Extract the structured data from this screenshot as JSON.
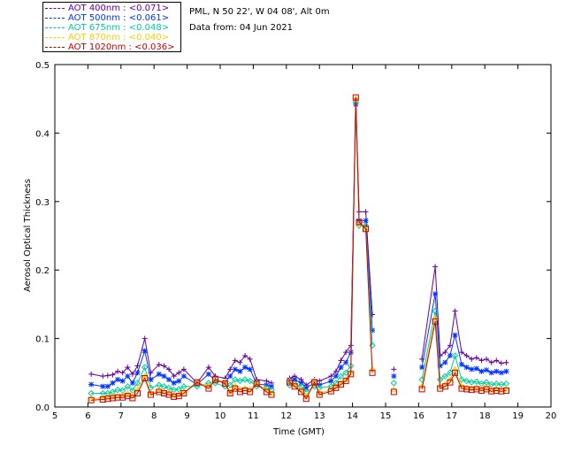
{
  "header": {
    "site": "PML, N 50 22', W 04 08', Alt 0m",
    "date": "Data from: 04 Jun 2021"
  },
  "legend": [
    {
      "text": "AOT  400nm : <0.071>",
      "color": "#660099"
    },
    {
      "text": "AOT  500nm : <0.061>",
      "color": "#0033ff"
    },
    {
      "text": "AOT  675nm : <0.048>",
      "color": "#00cc99"
    },
    {
      "text": "AOT  870nm : <0.040>",
      "color": "#ffcc00"
    },
    {
      "text": "AOT 1020nm : <0.036>",
      "color": "#cc0000"
    }
  ],
  "chart_data": {
    "type": "line",
    "title": "",
    "xlabel": "Time (GMT)",
    "ylabel": "Aerosol Optical Thickness",
    "xlim": [
      5,
      20
    ],
    "ylim": [
      0,
      0.5
    ],
    "xticks": [
      5,
      6,
      7,
      8,
      9,
      10,
      11,
      12,
      13,
      14,
      15,
      16,
      17,
      18,
      19,
      20
    ],
    "yticks": [
      0.0,
      0.1,
      0.2,
      0.3,
      0.4,
      0.5
    ],
    "ytick_labels": [
      "0.0",
      "0.1",
      "0.2",
      "0.3",
      "0.4",
      "0.5"
    ],
    "x": [
      6.1,
      6.45,
      6.6,
      6.75,
      6.9,
      7.05,
      7.2,
      7.35,
      7.5,
      7.72,
      7.9,
      8.15,
      8.3,
      8.45,
      8.6,
      8.75,
      8.9,
      9.3,
      9.65,
      9.85,
      10.15,
      10.3,
      10.45,
      10.6,
      10.75,
      10.9,
      11.1,
      11.4,
      11.55,
      12.1,
      12.25,
      12.45,
      12.6,
      12.85,
      13.0,
      13.35,
      13.5,
      13.65,
      13.8,
      13.95,
      14.1,
      14.2,
      14.4,
      14.6,
      15.25,
      16.1,
      16.5,
      16.65,
      16.8,
      16.95,
      17.1,
      17.3,
      17.45,
      17.6,
      17.75,
      17.9,
      18.05,
      18.2,
      18.35,
      18.5,
      18.65
    ],
    "series": [
      {
        "name": "AOT  400nm",
        "values": [
          0.048,
          0.045,
          0.046,
          0.047,
          0.052,
          0.05,
          0.058,
          0.048,
          0.06,
          0.1,
          0.05,
          0.062,
          0.06,
          0.055,
          0.045,
          0.05,
          0.055,
          0.035,
          0.058,
          0.045,
          0.042,
          0.055,
          0.068,
          0.065,
          0.075,
          0.07,
          0.04,
          0.038,
          0.035,
          0.042,
          0.045,
          0.04,
          0.032,
          0.04,
          0.038,
          0.045,
          0.052,
          0.068,
          0.08,
          0.09,
          0.45,
          0.285,
          0.285,
          0.135,
          0.055,
          0.07,
          0.205,
          0.075,
          0.08,
          0.09,
          0.14,
          0.08,
          0.075,
          0.07,
          0.072,
          0.068,
          0.07,
          0.065,
          0.068,
          0.064,
          0.065
        ]
      },
      {
        "name": "AOT  500nm",
        "values": [
          0.033,
          0.03,
          0.03,
          0.035,
          0.04,
          0.038,
          0.045,
          0.035,
          0.05,
          0.082,
          0.04,
          0.048,
          0.045,
          0.04,
          0.035,
          0.038,
          0.045,
          0.033,
          0.048,
          0.038,
          0.036,
          0.045,
          0.055,
          0.052,
          0.058,
          0.055,
          0.034,
          0.032,
          0.03,
          0.037,
          0.04,
          0.035,
          0.028,
          0.035,
          0.032,
          0.038,
          0.045,
          0.058,
          0.065,
          0.08,
          0.442,
          0.272,
          0.272,
          0.112,
          0.045,
          0.058,
          0.165,
          0.06,
          0.065,
          0.075,
          0.105,
          0.062,
          0.058,
          0.055,
          0.056,
          0.052,
          0.054,
          0.05,
          0.052,
          0.05,
          0.052
        ]
      },
      {
        "name": "AOT  675nm",
        "values": [
          0.02,
          0.02,
          0.02,
          0.022,
          0.025,
          0.024,
          0.03,
          0.024,
          0.035,
          0.058,
          0.028,
          0.032,
          0.03,
          0.028,
          0.025,
          0.026,
          0.03,
          0.03,
          0.035,
          0.035,
          0.03,
          0.032,
          0.04,
          0.038,
          0.04,
          0.038,
          0.03,
          0.028,
          0.025,
          0.032,
          0.034,
          0.03,
          0.022,
          0.03,
          0.028,
          0.03,
          0.035,
          0.045,
          0.05,
          0.06,
          0.445,
          0.265,
          0.265,
          0.09,
          0.035,
          0.04,
          0.14,
          0.04,
          0.045,
          0.05,
          0.075,
          0.04,
          0.038,
          0.036,
          0.037,
          0.034,
          0.036,
          0.033,
          0.034,
          0.033,
          0.034
        ]
      },
      {
        "name": "AOT  870nm",
        "values": [
          0.012,
          0.013,
          0.014,
          0.015,
          0.016,
          0.016,
          0.02,
          0.016,
          0.025,
          0.045,
          0.02,
          0.024,
          0.022,
          0.02,
          0.017,
          0.018,
          0.022,
          0.036,
          0.03,
          0.04,
          0.036,
          0.022,
          0.03,
          0.025,
          0.027,
          0.025,
          0.035,
          0.025,
          0.02,
          0.038,
          0.032,
          0.025,
          0.015,
          0.038,
          0.02,
          0.025,
          0.03,
          0.035,
          0.04,
          0.05,
          0.45,
          0.268,
          0.26,
          0.055,
          0.025,
          0.03,
          0.13,
          0.03,
          0.033,
          0.04,
          0.055,
          0.03,
          0.028,
          0.027,
          0.028,
          0.026,
          0.028,
          0.025,
          0.026,
          0.025,
          0.026
        ]
      },
      {
        "name": "AOT 1020nm",
        "values": [
          0.01,
          0.011,
          0.012,
          0.013,
          0.014,
          0.014,
          0.016,
          0.013,
          0.02,
          0.042,
          0.018,
          0.022,
          0.02,
          0.018,
          0.015,
          0.016,
          0.02,
          0.036,
          0.027,
          0.04,
          0.034,
          0.02,
          0.027,
          0.022,
          0.024,
          0.022,
          0.034,
          0.022,
          0.018,
          0.036,
          0.03,
          0.022,
          0.012,
          0.036,
          0.018,
          0.023,
          0.028,
          0.033,
          0.038,
          0.048,
          0.452,
          0.27,
          0.26,
          0.05,
          0.022,
          0.026,
          0.125,
          0.027,
          0.03,
          0.036,
          0.05,
          0.027,
          0.026,
          0.025,
          0.026,
          0.024,
          0.026,
          0.023,
          0.024,
          0.023,
          0.024
        ]
      }
    ]
  }
}
